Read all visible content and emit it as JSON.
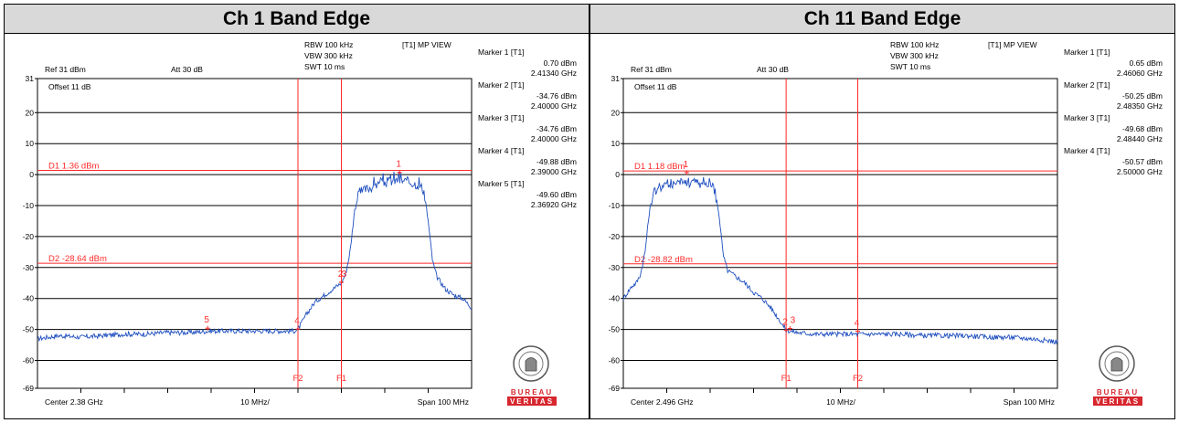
{
  "panels": [
    {
      "title": "Ch 1 Band Edge",
      "settings": {
        "rbw": "RBW 100 kHz",
        "vbw": "VBW 300 kHz",
        "swt": "SWT 10 ms",
        "view": "[T1] MP VIEW",
        "ref": "Ref 31 dBm",
        "att": "Att  30 dB",
        "offset": "Offset 11 dB"
      },
      "markers": [
        {
          "label": "Marker 1 [T1]",
          "level": "0.70 dBm",
          "freq": "2.41340 GHz"
        },
        {
          "label": "Marker 2 [T1]",
          "level": "-34.76 dBm",
          "freq": "2.40000 GHz"
        },
        {
          "label": "Marker 3 [T1]",
          "level": "-34.76 dBm",
          "freq": "2.40000 GHz"
        },
        {
          "label": "Marker 4 [T1]",
          "level": "-49.88 dBm",
          "freq": "2.39000 GHz"
        },
        {
          "label": "Marker 5 [T1]",
          "level": "-49.60 dBm",
          "freq": "2.36920 GHz"
        }
      ],
      "footer": {
        "center": "Center 2.38 GHz",
        "div": "10 MHz/",
        "span": "Span 100 MHz"
      },
      "logo": {
        "top": "BUREAU",
        "bottom": "VERITAS",
        "seal_text": "BUREAU VERITAS 1828"
      }
    },
    {
      "title": "Ch 11 Band Edge",
      "settings": {
        "rbw": "RBW 100 kHz",
        "vbw": "VBW 300 kHz",
        "swt": "SWT 10 ms",
        "view": "[T1] MP VIEW",
        "ref": "Ref 31 dBm",
        "att": "Att  30 dB",
        "offset": "Offset 11 dB"
      },
      "markers": [
        {
          "label": "Marker 1 [T1]",
          "level": "0.65 dBm",
          "freq": "2.46060 GHz"
        },
        {
          "label": "Marker 2 [T1]",
          "level": "-50.25 dBm",
          "freq": "2.48350 GHz"
        },
        {
          "label": "Marker 3 [T1]",
          "level": "-49.68 dBm",
          "freq": "2.48440 GHz"
        },
        {
          "label": "Marker 4 [T1]",
          "level": "-50.57 dBm",
          "freq": "2.50000 GHz"
        }
      ],
      "footer": {
        "center": "Center 2.496 GHz",
        "div": "10 MHz/",
        "span": "Span 100 MHz"
      },
      "logo": {
        "top": "BUREAU",
        "bottom": "VERITAS",
        "seal_text": "BUREAU VERITAS 1828"
      }
    }
  ],
  "colors": {
    "trace": "#1f4fbf",
    "marker": "#ff2a2a",
    "grid": "#000000",
    "header_bg": "#d9d9d9",
    "logo_red": "#d7262e"
  },
  "chart_data": [
    {
      "type": "line",
      "title": "Ch 1 Band Edge",
      "xlabel": "",
      "ylabel": "",
      "xunit": "MHz",
      "yunit": "dBm",
      "xlim": [
        2330,
        2430
      ],
      "ylim": [
        -69,
        31
      ],
      "ytick_labels": [
        "31",
        "20",
        "10",
        "0",
        "-10",
        "-20",
        "-30",
        "-40",
        "-50",
        "-60",
        "-69"
      ],
      "ytick_values": [
        31,
        20,
        10,
        0,
        -10,
        -20,
        -30,
        -40,
        -50,
        -60,
        -69
      ],
      "grid": true,
      "display_lines": [
        {
          "label": "D1 1.36 dBm",
          "value": 1.36
        },
        {
          "label": "D2 -28.64 dBm",
          "value": -28.64
        }
      ],
      "frequency_lines": [
        {
          "label": "F2",
          "x": 2390
        },
        {
          "label": "F1",
          "x": 2400
        }
      ],
      "markers": [
        {
          "id": "1",
          "x": 2413.4,
          "y": 0.7
        },
        {
          "id": "2",
          "x": 2400.0,
          "y": -34.76
        },
        {
          "id": "3",
          "x": 2400.0,
          "y": -34.76
        },
        {
          "id": "4",
          "x": 2390.0,
          "y": -49.88
        },
        {
          "id": "5",
          "x": 2369.2,
          "y": -49.6
        }
      ],
      "series": [
        {
          "x": [
            2330,
            2335,
            2340,
            2345,
            2350,
            2355,
            2360,
            2365,
            2370,
            2375,
            2380,
            2385,
            2389,
            2390,
            2392,
            2394,
            2396,
            2398,
            2400,
            2401,
            2402,
            2403,
            2404,
            2406,
            2408,
            2410,
            2412,
            2414,
            2416,
            2418,
            2419,
            2420,
            2421,
            2422,
            2424,
            2426,
            2428,
            2430
          ],
          "y": [
            -53,
            -52,
            -52.5,
            -52,
            -51.5,
            -51.5,
            -51,
            -51,
            -50.5,
            -50.5,
            -50.5,
            -50.5,
            -50.5,
            -50,
            -45,
            -41,
            -39,
            -37,
            -35,
            -32,
            -25,
            -12,
            -6,
            -4.5,
            -3.5,
            -2.5,
            -2,
            -2,
            -2.5,
            -3.5,
            -5,
            -15,
            -28,
            -33,
            -37,
            -39,
            -40,
            -43
          ]
        }
      ]
    },
    {
      "type": "line",
      "title": "Ch 11 Band Edge",
      "xlabel": "",
      "ylabel": "",
      "xunit": "MHz",
      "yunit": "dBm",
      "xlim": [
        2446,
        2546
      ],
      "ylim": [
        -69,
        31
      ],
      "ytick_labels": [
        "31",
        "20",
        "10",
        "0",
        "-10",
        "-20",
        "-30",
        "-40",
        "-50",
        "-60",
        "-69"
      ],
      "ytick_values": [
        31,
        20,
        10,
        0,
        -10,
        -20,
        -30,
        -40,
        -50,
        -60,
        -69
      ],
      "grid": true,
      "display_lines": [
        {
          "label": "D1 1.18 dBm",
          "value": 1.18
        },
        {
          "label": "D2 -28.82 dBm",
          "value": -28.82
        }
      ],
      "frequency_lines": [
        {
          "label": "F1",
          "x": 2483.5
        },
        {
          "label": "F2",
          "x": 2500
        }
      ],
      "markers": [
        {
          "id": "1",
          "x": 2460.6,
          "y": 0.65
        },
        {
          "id": "2",
          "x": 2483.5,
          "y": -50.25
        },
        {
          "id": "3",
          "x": 2484.4,
          "y": -49.68
        },
        {
          "id": "4",
          "x": 2500.0,
          "y": -50.57
        }
      ],
      "series": [
        {
          "x": [
            2446,
            2447,
            2448,
            2449,
            2450,
            2451,
            2452,
            2453,
            2454,
            2456,
            2458,
            2460,
            2462,
            2464,
            2466,
            2467,
            2468,
            2469,
            2470,
            2472,
            2474,
            2476,
            2478,
            2480,
            2482,
            2483.5,
            2484.4,
            2486,
            2490,
            2495,
            2500,
            2505,
            2510,
            2515,
            2520,
            2525,
            2530,
            2535,
            2540,
            2546
          ],
          "y": [
            -40,
            -38,
            -36,
            -35,
            -32,
            -25,
            -12,
            -6,
            -4,
            -3.5,
            -3,
            -2.5,
            -2.5,
            -3,
            -3.5,
            -5,
            -12,
            -26,
            -31,
            -33,
            -35,
            -38,
            -40,
            -43,
            -47,
            -50.3,
            -50.5,
            -51,
            -51.5,
            -51.5,
            -51.5,
            -51.5,
            -51.5,
            -52,
            -52,
            -52,
            -52.5,
            -52.5,
            -53,
            -54
          ]
        }
      ]
    }
  ]
}
